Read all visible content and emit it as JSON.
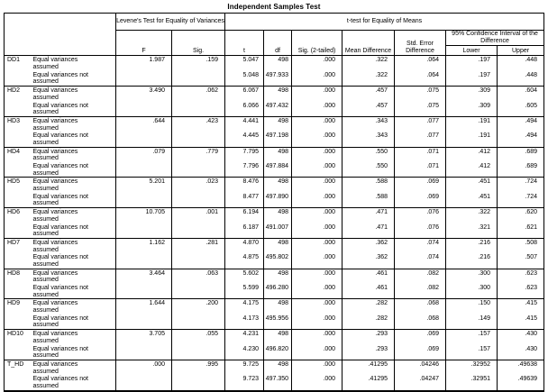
{
  "title": "Independent Samples Test",
  "header": {
    "levene": "Levene's Test for Equality of Variances",
    "ttest": "t-test for Equality of Means",
    "ci": "95% Confidence Interval of the Difference",
    "cols": {
      "f": "F",
      "sig": "Sig.",
      "t": "t",
      "df": "df",
      "sig2": "Sig. (2-tailed)",
      "md": "Mean Difference",
      "se": "Std. Error Difference",
      "lower": "Lower",
      "upper": "Upper"
    }
  },
  "row_labels": {
    "assumed": "Equal variances assumed",
    "not_assumed": "Equal variances not assumed"
  },
  "rows": [
    {
      "var": "DD1",
      "assumed": {
        "f": "1.987",
        "sig": ".159",
        "t": "5.047",
        "df": "498",
        "sig2": ".000",
        "md": ".322",
        "se": ".064",
        "lower": ".197",
        "upper": ".448"
      },
      "not_assumed": {
        "t": "5.048",
        "df": "497.933",
        "sig2": ".000",
        "md": ".322",
        "se": ".064",
        "lower": ".197",
        "upper": ".448"
      }
    },
    {
      "var": "HD2",
      "assumed": {
        "f": "3.490",
        "sig": ".062",
        "t": "6.067",
        "df": "498",
        "sig2": ".000",
        "md": ".457",
        "se": ".075",
        "lower": ".309",
        "upper": ".604"
      },
      "not_assumed": {
        "t": "6.066",
        "df": "497.432",
        "sig2": ".000",
        "md": ".457",
        "se": ".075",
        "lower": ".309",
        "upper": ".605"
      }
    },
    {
      "var": "HD3",
      "assumed": {
        "f": ".644",
        "sig": ".423",
        "t": "4.441",
        "df": "498",
        "sig2": ".000",
        "md": ".343",
        "se": ".077",
        "lower": ".191",
        "upper": ".494"
      },
      "not_assumed": {
        "t": "4.445",
        "df": "497.198",
        "sig2": ".000",
        "md": ".343",
        "se": ".077",
        "lower": ".191",
        "upper": ".494"
      }
    },
    {
      "var": "HD4",
      "assumed": {
        "f": ".079",
        "sig": ".779",
        "t": "7.795",
        "df": "498",
        "sig2": ".000",
        "md": ".550",
        "se": ".071",
        "lower": ".412",
        "upper": ".689"
      },
      "not_assumed": {
        "t": "7.796",
        "df": "497.884",
        "sig2": ".000",
        "md": ".550",
        "se": ".071",
        "lower": ".412",
        "upper": ".689"
      }
    },
    {
      "var": "HD5",
      "assumed": {
        "f": "5.201",
        "sig": ".023",
        "t": "8.476",
        "df": "498",
        "sig2": ".000",
        "md": ".588",
        "se": ".069",
        "lower": ".451",
        "upper": ".724"
      },
      "not_assumed": {
        "t": "8.477",
        "df": "497.890",
        "sig2": ".000",
        "md": ".588",
        "se": ".069",
        "lower": ".451",
        "upper": ".724"
      }
    },
    {
      "var": "HD6",
      "assumed": {
        "f": "10.705",
        "sig": ".001",
        "t": "6.194",
        "df": "498",
        "sig2": ".000",
        "md": ".471",
        "se": ".076",
        "lower": ".322",
        "upper": ".620"
      },
      "not_assumed": {
        "t": "6.187",
        "df": "491.007",
        "sig2": ".000",
        "md": ".471",
        "se": ".076",
        "lower": ".321",
        "upper": ".621"
      }
    },
    {
      "var": "HD7",
      "assumed": {
        "f": "1.162",
        "sig": ".281",
        "t": "4.870",
        "df": "498",
        "sig2": ".000",
        "md": ".362",
        "se": ".074",
        "lower": ".216",
        "upper": ".508"
      },
      "not_assumed": {
        "t": "4.875",
        "df": "495.802",
        "sig2": ".000",
        "md": ".362",
        "se": ".074",
        "lower": ".216",
        "upper": ".507"
      }
    },
    {
      "var": "HD8",
      "assumed": {
        "f": "3.464",
        "sig": ".063",
        "t": "5.602",
        "df": "498",
        "sig2": ".000",
        "md": ".461",
        "se": ".082",
        "lower": ".300",
        "upper": ".623"
      },
      "not_assumed": {
        "t": "5.599",
        "df": "496.280",
        "sig2": ".000",
        "md": ".461",
        "se": ".082",
        "lower": ".300",
        "upper": ".623"
      }
    },
    {
      "var": "HD9",
      "assumed": {
        "f": "1.644",
        "sig": ".200",
        "t": "4.175",
        "df": "498",
        "sig2": ".000",
        "md": ".282",
        "se": ".068",
        "lower": ".150",
        "upper": ".415"
      },
      "not_assumed": {
        "t": "4.173",
        "df": "495.956",
        "sig2": ".000",
        "md": ".282",
        "se": ".068",
        "lower": ".149",
        "upper": ".415"
      }
    },
    {
      "var": "HD10",
      "assumed": {
        "f": "3.705",
        "sig": ".055",
        "t": "4.231",
        "df": "498",
        "sig2": ".000",
        "md": ".293",
        "se": ".069",
        "lower": ".157",
        "upper": ".430"
      },
      "not_assumed": {
        "t": "4.230",
        "df": "496.820",
        "sig2": ".000",
        "md": ".293",
        "se": ".069",
        "lower": ".157",
        "upper": ".430"
      }
    },
    {
      "var": "T_HD",
      "assumed": {
        "f": ".000",
        "sig": ".995",
        "t": "9.725",
        "df": "498",
        "sig2": ".000",
        "md": ".41295",
        "se": ".04246",
        "lower": ".32952",
        "upper": ".49638"
      },
      "not_assumed": {
        "t": "9.723",
        "df": "497.350",
        "sig2": ".000",
        "md": ".41295",
        "se": ".04247",
        "lower": ".32951",
        "upper": ".49639"
      }
    }
  ]
}
